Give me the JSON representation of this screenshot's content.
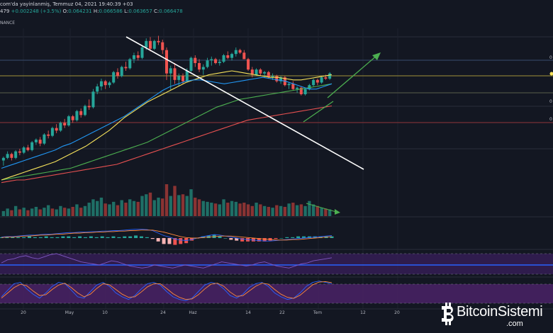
{
  "header": {
    "line1": "com'da yayinlanmiş, Temmuz 04, 2021 19:40:39 +03",
    "line2_prefix": "479",
    "change": "+0.002248 (+3.5%)",
    "open_label": "O:",
    "open": "0.064231",
    "high_label": "H:",
    "high": "0.066586",
    "low_label": "L:",
    "low": "0.063657",
    "close_label": "C:",
    "close": "0.066478",
    "exchange": "NANCE"
  },
  "watermark": {
    "brand": "BitcoinSistemi",
    "domain": ".com"
  },
  "colors": {
    "background": "#131722",
    "up": "#26a69a",
    "down": "#ef5350",
    "ma_blue": "#2196f3",
    "ma_yellow": "#f7e35b",
    "ma_green": "#4caf50",
    "ma_red": "#e55050",
    "trendline": "#ffffff",
    "arrow": "#4caf50",
    "rsi_fill": "#3a1f5c",
    "stoch_fill": "#4a2266"
  },
  "chart_data": {
    "type": "candlestick",
    "x_ticks": [
      "20",
      "May",
      "10",
      "24",
      "Haz",
      "14",
      "22",
      "Tem",
      "12",
      "20"
    ],
    "right_axis_partial_labels": [
      "0",
      "0",
      "0"
    ],
    "grid": true,
    "candles": [
      [
        0.01,
        0.04,
        -0.03,
        0.03
      ],
      [
        0.03,
        0.08,
        0.02,
        0.06
      ],
      [
        0.06,
        0.07,
        0.01,
        0.03
      ],
      [
        0.03,
        0.09,
        0.02,
        0.08
      ],
      [
        0.08,
        0.1,
        0.05,
        0.07
      ],
      [
        0.07,
        0.12,
        0.06,
        0.11
      ],
      [
        0.11,
        0.13,
        0.08,
        0.09
      ],
      [
        0.09,
        0.16,
        0.08,
        0.15
      ],
      [
        0.15,
        0.18,
        0.13,
        0.17
      ],
      [
        0.17,
        0.19,
        0.12,
        0.14
      ],
      [
        0.14,
        0.22,
        0.13,
        0.21
      ],
      [
        0.21,
        0.24,
        0.18,
        0.2
      ],
      [
        0.2,
        0.27,
        0.19,
        0.26
      ],
      [
        0.26,
        0.29,
        0.22,
        0.24
      ],
      [
        0.24,
        0.31,
        0.23,
        0.3
      ],
      [
        0.3,
        0.33,
        0.26,
        0.28
      ],
      [
        0.28,
        0.36,
        0.27,
        0.35
      ],
      [
        0.35,
        0.36,
        0.3,
        0.32
      ],
      [
        0.32,
        0.4,
        0.31,
        0.39
      ],
      [
        0.39,
        0.41,
        0.34,
        0.36
      ],
      [
        0.36,
        0.44,
        0.35,
        0.43
      ],
      [
        0.43,
        0.48,
        0.4,
        0.42
      ],
      [
        0.42,
        0.56,
        0.41,
        0.54
      ],
      [
        0.54,
        0.6,
        0.52,
        0.58
      ],
      [
        0.58,
        0.64,
        0.55,
        0.62
      ],
      [
        0.62,
        0.63,
        0.56,
        0.59
      ],
      [
        0.59,
        0.62,
        0.57,
        0.61
      ],
      [
        0.61,
        0.7,
        0.6,
        0.69
      ],
      [
        0.69,
        0.72,
        0.64,
        0.66
      ],
      [
        0.66,
        0.74,
        0.65,
        0.73
      ],
      [
        0.73,
        0.77,
        0.7,
        0.72
      ],
      [
        0.72,
        0.8,
        0.71,
        0.79
      ],
      [
        0.79,
        0.84,
        0.76,
        0.82
      ],
      [
        0.82,
        0.85,
        0.78,
        0.8
      ],
      [
        0.8,
        0.9,
        0.79,
        0.88
      ],
      [
        0.88,
        0.95,
        0.86,
        0.93
      ],
      [
        0.93,
        0.96,
        0.85,
        0.87
      ],
      [
        0.87,
        0.94,
        0.86,
        0.93
      ],
      [
        0.93,
        0.97,
        0.9,
        0.92
      ],
      [
        0.92,
        0.94,
        0.83,
        0.86
      ],
      [
        0.86,
        0.88,
        0.63,
        0.68
      ],
      [
        0.68,
        0.74,
        0.55,
        0.72
      ],
      [
        0.72,
        0.76,
        0.6,
        0.63
      ],
      [
        0.63,
        0.68,
        0.58,
        0.66
      ],
      [
        0.66,
        0.68,
        0.6,
        0.62
      ],
      [
        0.62,
        0.72,
        0.61,
        0.7
      ],
      [
        0.7,
        0.81,
        0.69,
        0.8
      ],
      [
        0.8,
        0.82,
        0.73,
        0.76
      ],
      [
        0.76,
        0.79,
        0.69,
        0.71
      ],
      [
        0.71,
        0.75,
        0.67,
        0.73
      ],
      [
        0.73,
        0.8,
        0.72,
        0.78
      ],
      [
        0.78,
        0.81,
        0.74,
        0.79
      ],
      [
        0.79,
        0.8,
        0.75,
        0.76
      ],
      [
        0.76,
        0.79,
        0.74,
        0.77
      ],
      [
        0.77,
        0.83,
        0.76,
        0.82
      ],
      [
        0.82,
        0.85,
        0.79,
        0.8
      ],
      [
        0.8,
        0.84,
        0.78,
        0.83
      ],
      [
        0.83,
        0.88,
        0.81,
        0.86
      ],
      [
        0.86,
        0.87,
        0.83,
        0.84
      ],
      [
        0.84,
        0.86,
        0.79,
        0.79
      ],
      [
        0.79,
        0.8,
        0.7,
        0.71
      ],
      [
        0.71,
        0.73,
        0.65,
        0.67
      ],
      [
        0.67,
        0.72,
        0.66,
        0.71
      ],
      [
        0.71,
        0.72,
        0.66,
        0.68
      ],
      [
        0.68,
        0.7,
        0.65,
        0.69
      ],
      [
        0.69,
        0.7,
        0.64,
        0.65
      ],
      [
        0.65,
        0.68,
        0.63,
        0.66
      ],
      [
        0.66,
        0.67,
        0.61,
        0.62
      ],
      [
        0.62,
        0.66,
        0.6,
        0.65
      ],
      [
        0.65,
        0.66,
        0.58,
        0.59
      ],
      [
        0.59,
        0.61,
        0.56,
        0.6
      ],
      [
        0.6,
        0.62,
        0.55,
        0.56
      ],
      [
        0.56,
        0.58,
        0.53,
        0.57
      ],
      [
        0.57,
        0.58,
        0.51,
        0.52
      ],
      [
        0.52,
        0.57,
        0.51,
        0.56
      ],
      [
        0.56,
        0.6,
        0.55,
        0.59
      ],
      [
        0.59,
        0.64,
        0.58,
        0.63
      ],
      [
        0.63,
        0.64,
        0.59,
        0.61
      ],
      [
        0.61,
        0.66,
        0.6,
        0.65
      ],
      [
        0.65,
        0.67,
        0.63,
        0.64
      ],
      [
        0.64,
        0.69,
        0.63,
        0.68
      ]
    ],
    "ma_blue": [
      -0.05,
      -0.03,
      -0.01,
      0.01,
      0.03,
      0.05,
      0.07,
      0.09,
      0.12,
      0.14,
      0.17,
      0.2,
      0.23,
      0.26,
      0.29,
      0.32,
      0.35,
      0.39,
      0.43,
      0.47,
      0.51,
      0.55,
      0.58,
      0.6,
      0.62,
      0.63,
      0.63,
      0.62,
      0.61,
      0.6,
      0.61,
      0.62,
      0.63,
      0.64,
      0.65,
      0.64,
      0.63,
      0.62,
      0.6,
      0.58,
      0.56,
      0.56,
      0.58,
      0.6
    ],
    "ma_yellow": [
      -0.14,
      -0.12,
      -0.1,
      -0.08,
      -0.06,
      -0.04,
      -0.02,
      0.0,
      0.03,
      0.06,
      0.09,
      0.12,
      0.16,
      0.2,
      0.24,
      0.29,
      0.34,
      0.38,
      0.42,
      0.46,
      0.49,
      0.52,
      0.55,
      0.58,
      0.61,
      0.63,
      0.65,
      0.67,
      0.68,
      0.69,
      0.7,
      0.69,
      0.68,
      0.67,
      0.66,
      0.65,
      0.65,
      0.64,
      0.63,
      0.63,
      0.64,
      0.65,
      0.66,
      0.67
    ],
    "ma_green": [
      -0.14,
      -0.13,
      -0.12,
      -0.11,
      -0.1,
      -0.09,
      -0.08,
      -0.07,
      -0.06,
      -0.05,
      -0.03,
      -0.01,
      0.01,
      0.03,
      0.05,
      0.07,
      0.09,
      0.11,
      0.13,
      0.15,
      0.18,
      0.21,
      0.24,
      0.27,
      0.3,
      0.33,
      0.36,
      0.39,
      0.42,
      0.44,
      0.46,
      0.48,
      0.49,
      0.5,
      0.51,
      0.52,
      0.53,
      0.54,
      0.55,
      0.56,
      0.57,
      0.58,
      0.59,
      0.6
    ],
    "ma_red": [
      -0.16,
      -0.15,
      -0.14,
      -0.14,
      -0.13,
      -0.12,
      -0.11,
      -0.1,
      -0.09,
      -0.08,
      -0.07,
      -0.06,
      -0.05,
      -0.04,
      -0.03,
      -0.02,
      0.0,
      0.02,
      0.04,
      0.06,
      0.08,
      0.1,
      0.12,
      0.14,
      0.16,
      0.18,
      0.2,
      0.22,
      0.24,
      0.26,
      0.28,
      0.3,
      0.32,
      0.33,
      0.34,
      0.35,
      0.36,
      0.37,
      0.38,
      0.39,
      0.4,
      0.41,
      0.42,
      0.43
    ],
    "volume": [
      6,
      9,
      7,
      12,
      8,
      10,
      7,
      9,
      11,
      8,
      10,
      13,
      9,
      8,
      12,
      10,
      9,
      11,
      14,
      10,
      12,
      16,
      20,
      18,
      22,
      15,
      14,
      17,
      13,
      19,
      16,
      20,
      18,
      17,
      24,
      26,
      28,
      19,
      22,
      21,
      38,
      24,
      36,
      25,
      26,
      24,
      32,
      22,
      20,
      18,
      17,
      16,
      15,
      14,
      20,
      16,
      18,
      17,
      15,
      16,
      14,
      12,
      16,
      14,
      12,
      11,
      10,
      13,
      12,
      11,
      15,
      16,
      13,
      14,
      12,
      18,
      14,
      12,
      10,
      9,
      8
    ],
    "volume_up": [
      1,
      1,
      0,
      1,
      0,
      1,
      0,
      1,
      1,
      0,
      1,
      1,
      0,
      1,
      1,
      0,
      1,
      0,
      1,
      0,
      1,
      1,
      1,
      1,
      1,
      0,
      1,
      1,
      0,
      1,
      0,
      1,
      1,
      0,
      1,
      1,
      0,
      1,
      1,
      0,
      0,
      1,
      0,
      1,
      0,
      1,
      1,
      0,
      0,
      1,
      1,
      1,
      0,
      1,
      1,
      0,
      1,
      1,
      0,
      0,
      0,
      0,
      1,
      0,
      1,
      0,
      1,
      0,
      1,
      0,
      1,
      0,
      1,
      0,
      1,
      1,
      1,
      0,
      1,
      0,
      1
    ],
    "macd": [
      0.02,
      0.03,
      0.03,
      0.04,
      0.05,
      0.06,
      0.06,
      0.07,
      0.08,
      0.08,
      0.09,
      0.1,
      0.11,
      0.11,
      0.12,
      0.12,
      0.13,
      0.13,
      0.14,
      0.14,
      0.15,
      0.15,
      0.16,
      0.17,
      0.18,
      0.18,
      0.17,
      0.15,
      0.1,
      0.05,
      0.02,
      -0.02,
      -0.04,
      -0.05,
      -0.03,
      0.0,
      0.03,
      0.05,
      0.07,
      0.06,
      0.04,
      0.02,
      0.0,
      -0.02,
      -0.03,
      -0.04,
      -0.05,
      -0.06,
      -0.06,
      -0.05,
      -0.04,
      -0.03,
      -0.02,
      -0.01,
      0.0,
      0.01,
      0.02,
      0.03,
      0.04,
      0.05
    ],
    "macd_signal": [
      0.01,
      0.02,
      0.02,
      0.03,
      0.04,
      0.04,
      0.05,
      0.06,
      0.06,
      0.07,
      0.08,
      0.08,
      0.09,
      0.1,
      0.1,
      0.11,
      0.11,
      0.12,
      0.12,
      0.13,
      0.13,
      0.14,
      0.14,
      0.15,
      0.15,
      0.16,
      0.16,
      0.16,
      0.14,
      0.12,
      0.09,
      0.06,
      0.03,
      0.01,
      0.0,
      0.0,
      0.01,
      0.02,
      0.03,
      0.04,
      0.04,
      0.04,
      0.03,
      0.02,
      0.01,
      0.0,
      -0.01,
      -0.02,
      -0.03,
      -0.04,
      -0.04,
      -0.04,
      -0.03,
      -0.03,
      -0.02,
      -0.01,
      0.0,
      0.01,
      0.02,
      0.03
    ],
    "rsi": [
      52,
      58,
      60,
      64,
      66,
      62,
      60,
      64,
      68,
      70,
      66,
      62,
      58,
      54,
      52,
      50,
      48,
      52,
      56,
      54,
      50,
      46,
      44,
      42,
      44,
      48,
      46,
      44,
      42,
      45,
      48,
      46,
      44,
      42,
      46,
      50,
      54,
      52,
      50,
      48,
      46,
      48,
      52,
      54,
      50,
      46,
      44,
      42,
      46,
      50,
      52,
      56,
      58,
      60,
      62
    ],
    "stoch_k": [
      30,
      55,
      80,
      85,
      60,
      40,
      25,
      45,
      70,
      85,
      80,
      55,
      30,
      25,
      50,
      75,
      85,
      70,
      45,
      30,
      20,
      35,
      60,
      80,
      85,
      75,
      50,
      30,
      20,
      15,
      25,
      50,
      75,
      85,
      80,
      60,
      35,
      25,
      40,
      65,
      80,
      85,
      70,
      45,
      30,
      20,
      25,
      45,
      70,
      85,
      90,
      85,
      80
    ],
    "stoch_d": [
      25,
      45,
      65,
      78,
      72,
      52,
      35,
      38,
      58,
      75,
      82,
      65,
      45,
      30,
      40,
      62,
      80,
      76,
      58,
      40,
      28,
      30,
      48,
      68,
      80,
      80,
      62,
      42,
      28,
      20,
      22,
      38,
      60,
      78,
      82,
      70,
      48,
      32,
      34,
      52,
      70,
      82,
      78,
      58,
      40,
      28,
      24,
      36,
      56,
      76,
      86,
      88,
      84
    ]
  }
}
